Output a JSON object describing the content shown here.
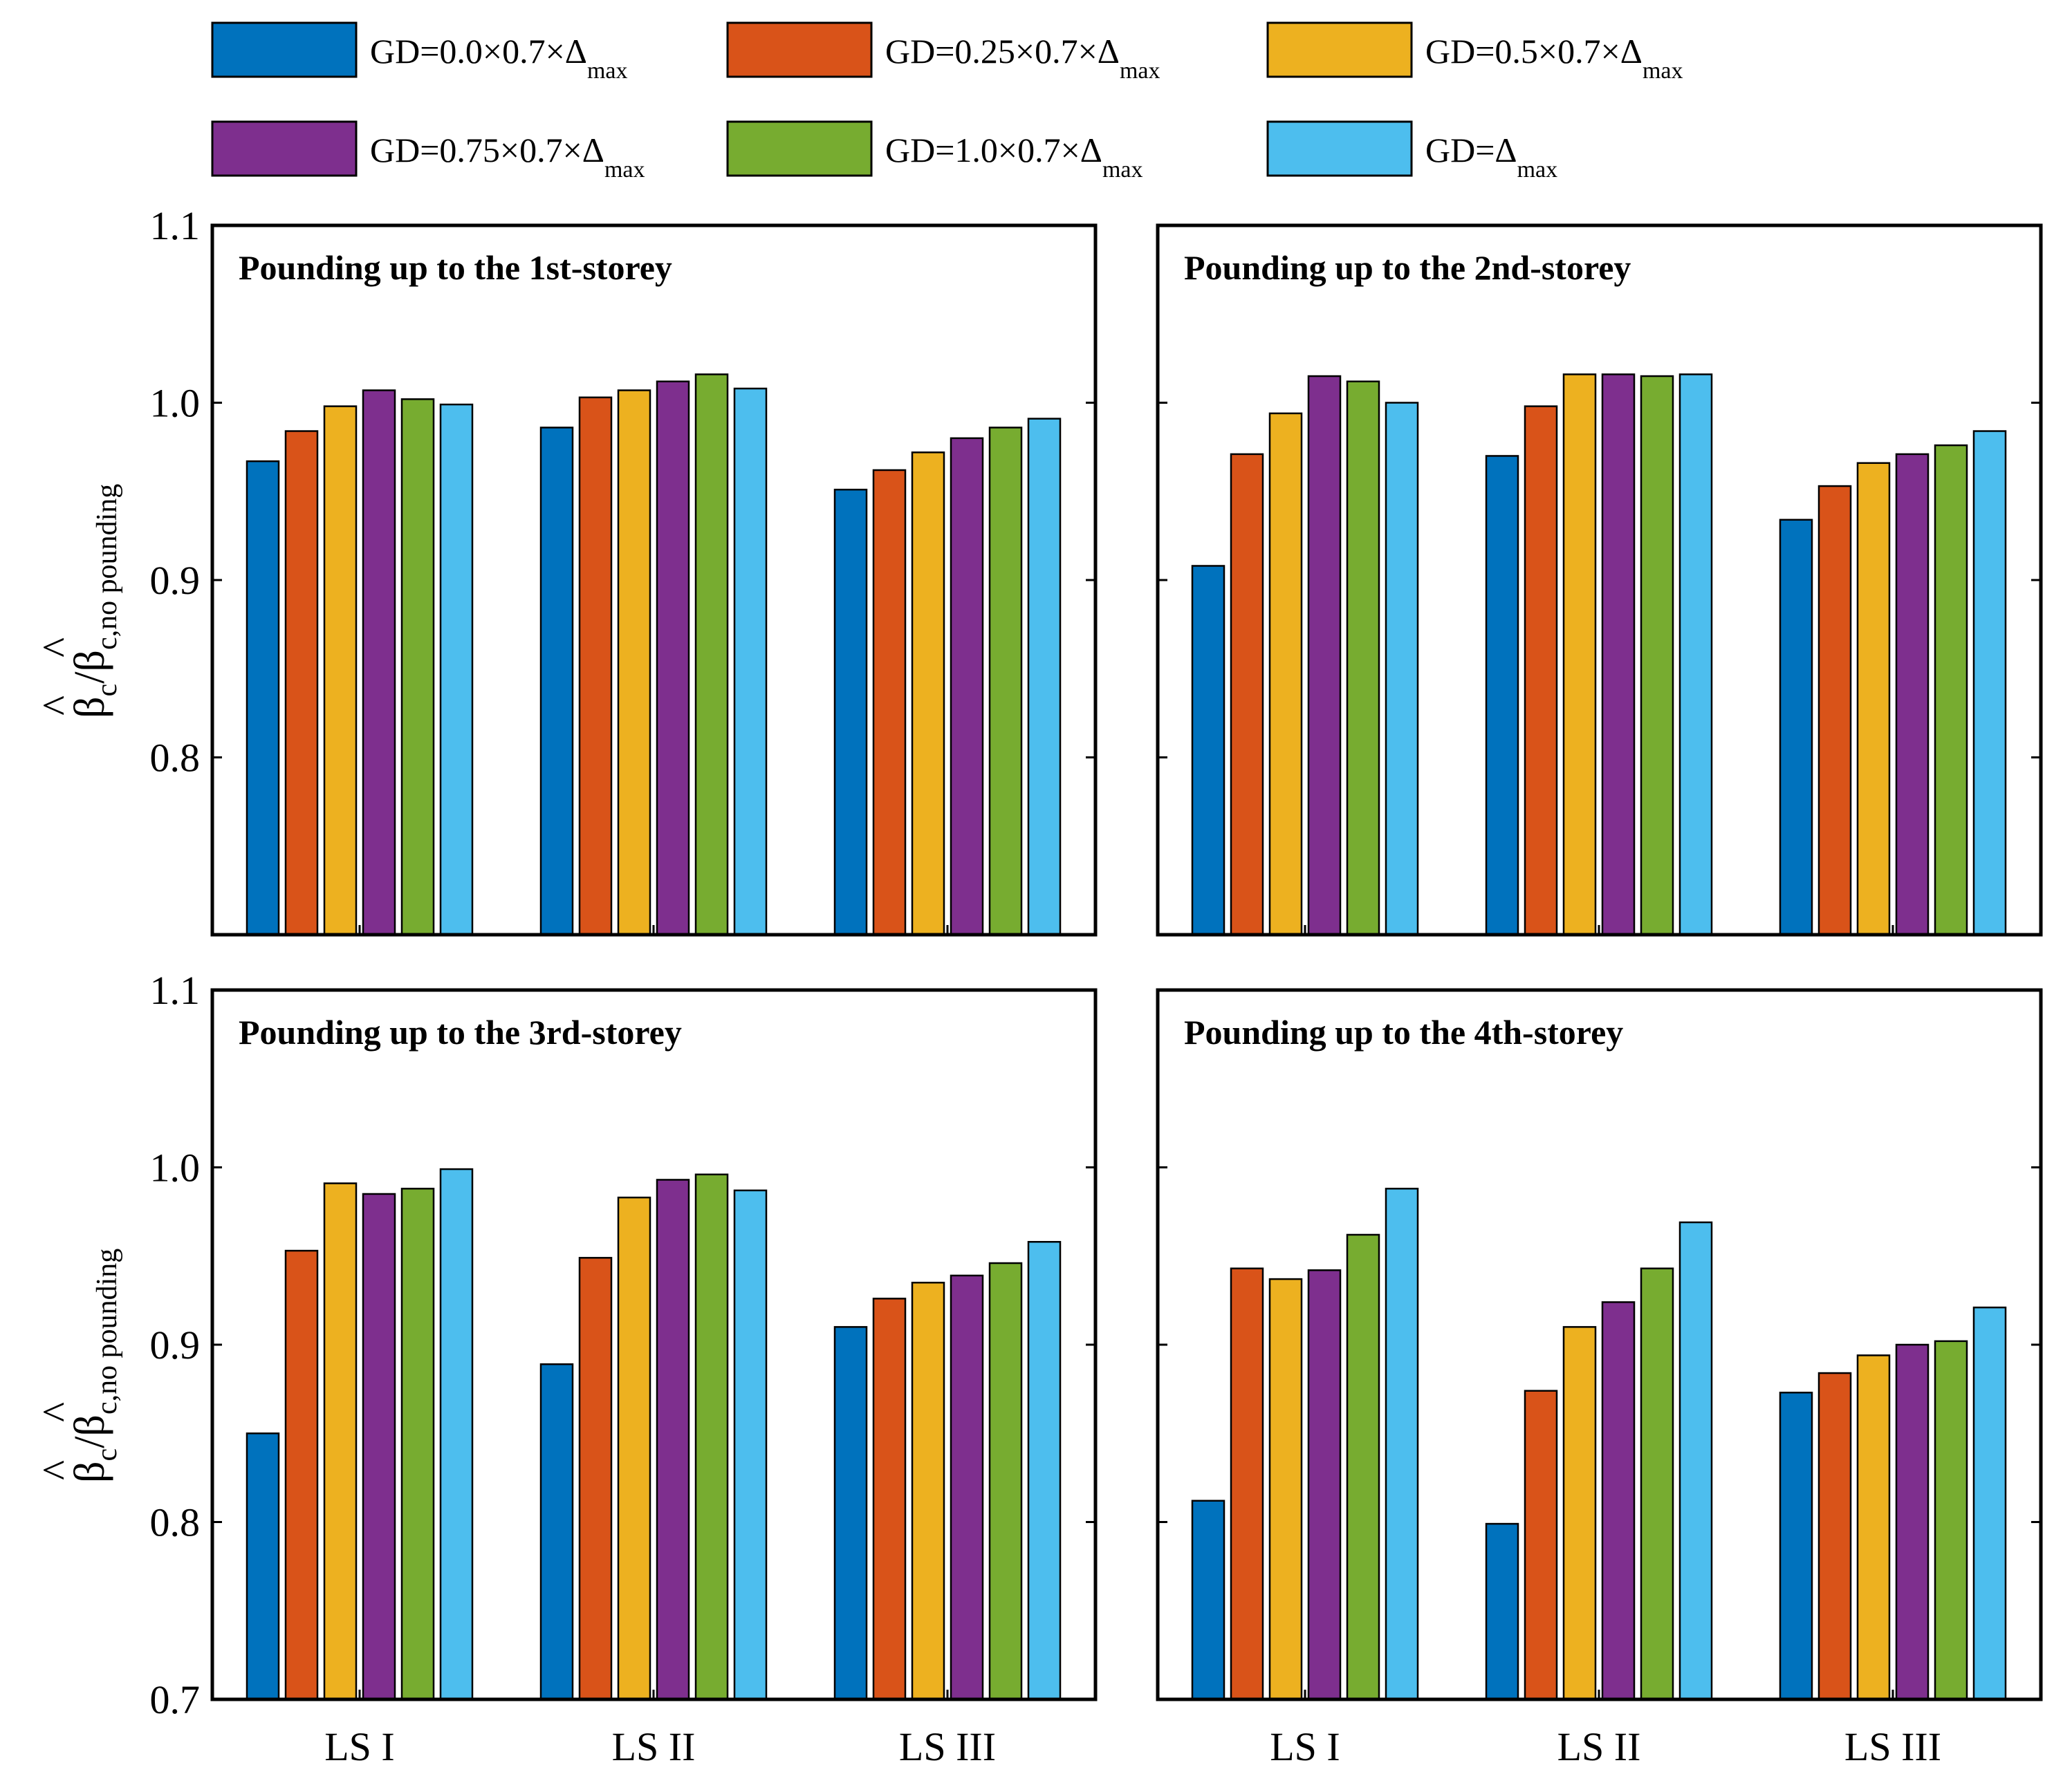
{
  "chart_data": [
    {
      "type": "bar",
      "panel": "top-left",
      "title": "Pounding up to the 1st-storey",
      "categories": [
        "LS I",
        "LS II",
        "LS III"
      ],
      "ylim": [
        0.7,
        1.1
      ],
      "ylabel": "β̂c/β̂c,no pounding",
      "series": [
        {
          "name": "GD=0.0×0.7×Δmax",
          "values": [
            0.967,
            0.986,
            0.951
          ]
        },
        {
          "name": "GD=0.25×0.7×Δmax",
          "values": [
            0.984,
            1.003,
            0.962
          ]
        },
        {
          "name": "GD=0.5×0.7×Δmax",
          "values": [
            0.998,
            1.007,
            0.972
          ]
        },
        {
          "name": "GD=0.75×0.7×Δmax",
          "values": [
            1.007,
            1.012,
            0.98
          ]
        },
        {
          "name": "GD=1.0×0.7×Δmax",
          "values": [
            1.002,
            1.016,
            0.986
          ]
        },
        {
          "name": "GD=Δmax",
          "values": [
            0.999,
            1.008,
            0.991
          ]
        }
      ]
    },
    {
      "type": "bar",
      "panel": "top-right",
      "title": "Pounding up to the 2nd-storey",
      "categories": [
        "LS I",
        "LS II",
        "LS III"
      ],
      "ylim": [
        0.7,
        1.1
      ],
      "series": [
        {
          "name": "GD=0.0×0.7×Δmax",
          "values": [
            0.908,
            0.97,
            0.934
          ]
        },
        {
          "name": "GD=0.25×0.7×Δmax",
          "values": [
            0.971,
            0.998,
            0.953
          ]
        },
        {
          "name": "GD=0.5×0.7×Δmax",
          "values": [
            0.994,
            1.016,
            0.966
          ]
        },
        {
          "name": "GD=0.75×0.7×Δmax",
          "values": [
            1.015,
            1.016,
            0.971
          ]
        },
        {
          "name": "GD=1.0×0.7×Δmax",
          "values": [
            1.012,
            1.015,
            0.976
          ]
        },
        {
          "name": "GD=Δmax",
          "values": [
            1.0,
            1.016,
            0.984
          ]
        }
      ]
    },
    {
      "type": "bar",
      "panel": "bottom-left",
      "title": "Pounding up to the 3rd-storey",
      "categories": [
        "LS I",
        "LS II",
        "LS III"
      ],
      "ylim": [
        0.7,
        1.1
      ],
      "ylabel": "β̂c/β̂c,no pounding",
      "series": [
        {
          "name": "GD=0.0×0.7×Δmax",
          "values": [
            0.85,
            0.889,
            0.91
          ]
        },
        {
          "name": "GD=0.25×0.7×Δmax",
          "values": [
            0.953,
            0.949,
            0.926
          ]
        },
        {
          "name": "GD=0.5×0.7×Δmax",
          "values": [
            0.991,
            0.983,
            0.935
          ]
        },
        {
          "name": "GD=0.75×0.7×Δmax",
          "values": [
            0.985,
            0.993,
            0.939
          ]
        },
        {
          "name": "GD=1.0×0.7×Δmax",
          "values": [
            0.988,
            0.996,
            0.946
          ]
        },
        {
          "name": "GD=Δmax",
          "values": [
            0.999,
            0.987,
            0.958
          ]
        }
      ]
    },
    {
      "type": "bar",
      "panel": "bottom-right",
      "title": "Pounding up to the 4th-storey",
      "categories": [
        "LS I",
        "LS II",
        "LS III"
      ],
      "ylim": [
        0.7,
        1.1
      ],
      "series": [
        {
          "name": "GD=0.0×0.7×Δmax",
          "values": [
            0.812,
            0.799,
            0.873
          ]
        },
        {
          "name": "GD=0.25×0.7×Δmax",
          "values": [
            0.943,
            0.874,
            0.884
          ]
        },
        {
          "name": "GD=0.5×0.7×Δmax",
          "values": [
            0.937,
            0.91,
            0.894
          ]
        },
        {
          "name": "GD=0.75×0.7×Δmax",
          "values": [
            0.942,
            0.924,
            0.9
          ]
        },
        {
          "name": "GD=1.0×0.7×Δmax",
          "values": [
            0.962,
            0.943,
            0.902
          ]
        },
        {
          "name": "GD=Δmax",
          "values": [
            0.988,
            0.969,
            0.921
          ]
        }
      ]
    }
  ],
  "legend": [
    {
      "prefix": "GD=0.0×0.7×Δ",
      "sub": "max",
      "color": "#0072BD"
    },
    {
      "prefix": "GD=0.25×0.7×Δ",
      "sub": "max",
      "color": "#D95319"
    },
    {
      "prefix": "GD=0.5×0.7×Δ",
      "sub": "max",
      "color": "#EDB120"
    },
    {
      "prefix": "GD=0.75×0.7×Δ",
      "sub": "max",
      "color": "#7E2F8E"
    },
    {
      "prefix": "GD=1.0×0.7×Δ",
      "sub": "max",
      "color": "#77AC30"
    },
    {
      "prefix": "GD=Δ",
      "sub": "max",
      "color": "#4DBEEE"
    }
  ],
  "y_axis": {
    "top_ticks": [
      "1.1",
      "1.0",
      "0.9",
      "0.8"
    ],
    "bottom_ticks": [
      "1.1",
      "1.0",
      "0.9",
      "0.8",
      "0.7"
    ],
    "label_main": "β",
    "label_sub1": "c",
    "label_slash": "/β",
    "label_sub2": "c,no pounding",
    "hat": "^"
  }
}
